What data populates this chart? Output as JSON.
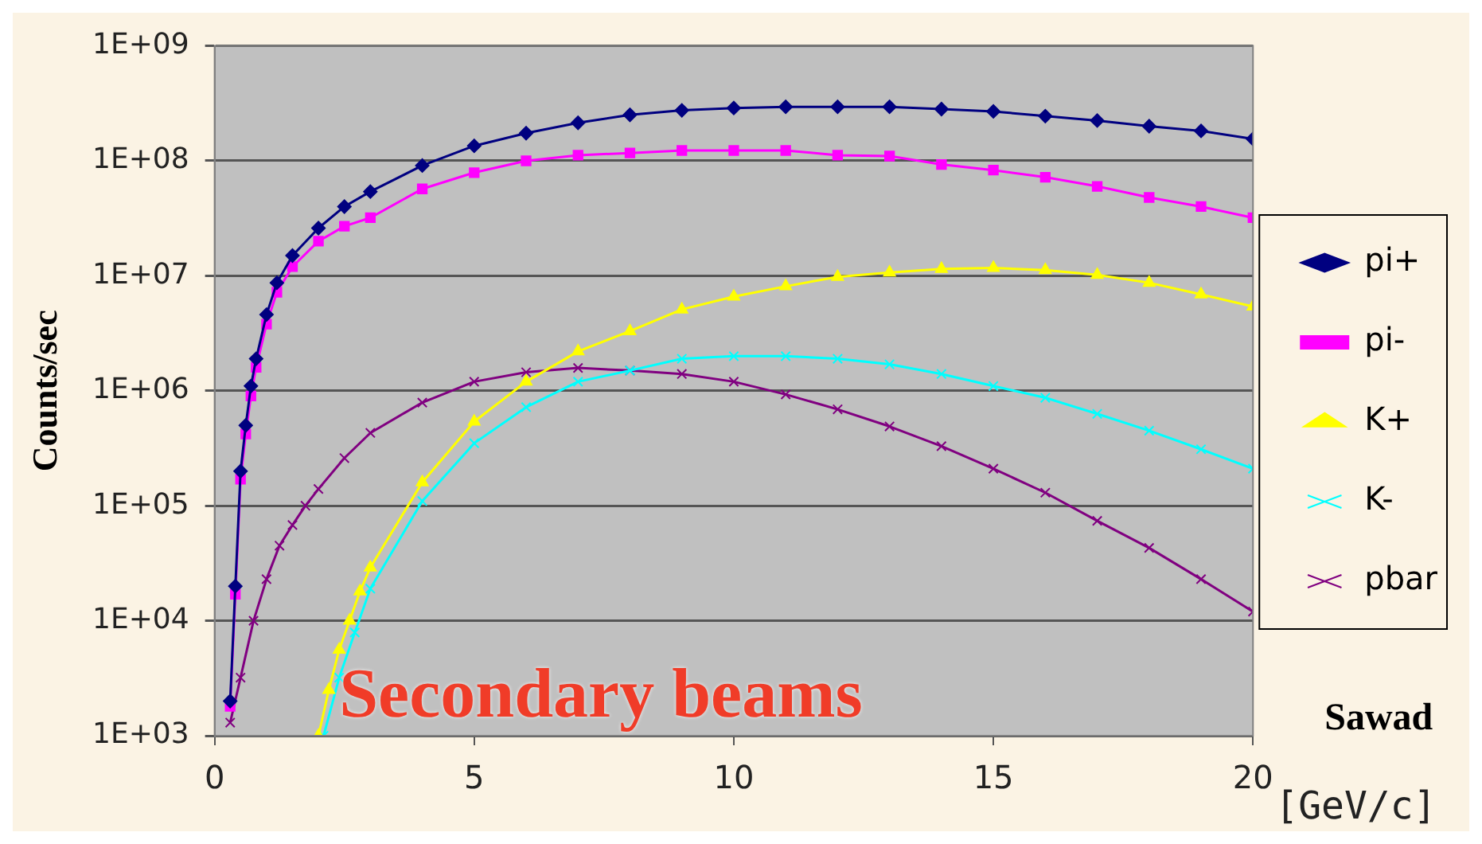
{
  "chart_data": {
    "type": "line",
    "ylabel": "Counts/sec",
    "xlabel": "[GeV/c]",
    "log": "y",
    "grid": "y",
    "legend": "right",
    "xlim": [
      0,
      20
    ],
    "xticks": [
      0,
      5,
      10,
      15,
      20
    ],
    "ylim": [
      1000,
      1000000000
    ],
    "yticks": [
      {
        "value": 1000,
        "label": "1E+03"
      },
      {
        "value": 10000,
        "label": "1E+04"
      },
      {
        "value": 100000,
        "label": "1E+05"
      },
      {
        "value": 1000000,
        "label": "1E+06"
      },
      {
        "value": 10000000,
        "label": "1E+07"
      },
      {
        "value": 100000000,
        "label": "1E+08"
      },
      {
        "value": 1000000000,
        "label": "1E+09"
      }
    ],
    "annotations": [
      "Secondary beams",
      "Sawad"
    ],
    "series": [
      {
        "name": "pi+",
        "color": "#000080",
        "marker": "diamond",
        "x": [
          0.3,
          0.4,
          0.5,
          0.6,
          0.7,
          0.8,
          1,
          1.2,
          1.5,
          2,
          2.5,
          3,
          4,
          5,
          6,
          7,
          8,
          9,
          10,
          11,
          12,
          13,
          14,
          15,
          16,
          17,
          18,
          19,
          20
        ],
        "values": [
          2000,
          20000,
          200000,
          500000,
          1100000,
          1900000,
          4600000,
          8700000,
          15000000,
          26000000,
          40000000,
          54000000,
          91000000,
          135000000,
          174000000,
          214000000,
          251000000,
          275000000,
          288000000,
          295000000,
          295000000,
          295000000,
          282000000,
          269000000,
          245000000,
          224000000,
          200000000,
          182000000,
          155000000
        ]
      },
      {
        "name": "pi-",
        "color": "#ff00ff",
        "marker": "square",
        "x": [
          0.3,
          0.4,
          0.5,
          0.6,
          0.7,
          0.8,
          1,
          1.2,
          1.5,
          2,
          2.5,
          3,
          4,
          5,
          6,
          7,
          8,
          9,
          10,
          11,
          12,
          13,
          14,
          15,
          16,
          17,
          18,
          19,
          20
        ],
        "values": [
          1800,
          17000,
          170000,
          420000,
          900000,
          1600000,
          3800000,
          7200000,
          12000000,
          20000000,
          27000000,
          32000000,
          57000000,
          79000000,
          100000000,
          112000000,
          117000000,
          123000000,
          123000000,
          123000000,
          112000000,
          110000000,
          93000000,
          83000000,
          72000000,
          60000000,
          48000000,
          40000000,
          32000000
        ]
      },
      {
        "name": "K+",
        "color": "#ffff00",
        "marker": "triangle",
        "x": [
          2,
          2.2,
          2.4,
          2.6,
          2.8,
          3,
          4,
          5,
          6,
          7,
          8,
          9,
          10,
          11,
          12,
          13,
          14,
          15,
          16,
          17,
          18,
          19,
          20
        ],
        "values": [
          1000,
          2500,
          5600,
          10000,
          18000,
          29000,
          160000,
          540000,
          1200000,
          2200000,
          3300000,
          5100000,
          6600000,
          8100000,
          9800000,
          10700000,
          11500000,
          11700000,
          11200000,
          10200000,
          8700000,
          6900000,
          5400000
        ]
      },
      {
        "name": "K-",
        "color": "#00ffff",
        "marker": "cross",
        "x": [
          2.1,
          2.4,
          2.7,
          3,
          4,
          5,
          6,
          7,
          8,
          9,
          10,
          11,
          12,
          13,
          14,
          15,
          16,
          17,
          18,
          19,
          20
        ],
        "values": [
          1000,
          3200,
          7900,
          19000,
          110000,
          350000,
          720000,
          1200000,
          1500000,
          1900000,
          2000000,
          2000000,
          1900000,
          1700000,
          1400000,
          1100000,
          870000,
          630000,
          450000,
          310000,
          210000
        ]
      },
      {
        "name": "pbar",
        "color": "#800080",
        "marker": "cross",
        "x": [
          0.3,
          0.5,
          0.75,
          1,
          1.25,
          1.5,
          1.75,
          2,
          2.5,
          3,
          4,
          5,
          6,
          7,
          8,
          9,
          10,
          11,
          12,
          13,
          14,
          15,
          16,
          17,
          18,
          19,
          20
        ],
        "values": [
          1300,
          3200,
          10000,
          23000,
          45000,
          68000,
          100000,
          140000,
          260000,
          430000,
          790000,
          1200000,
          1450000,
          1580000,
          1500000,
          1400000,
          1200000,
          930000,
          690000,
          490000,
          330000,
          210000,
          130000,
          74000,
          43000,
          23000,
          12000
        ]
      }
    ]
  }
}
